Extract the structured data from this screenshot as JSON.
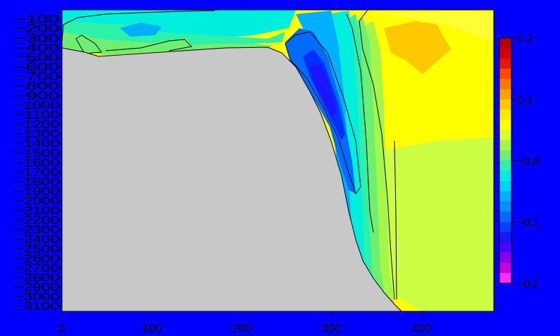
{
  "chart_data": {
    "type": "heatmap",
    "title": "",
    "xlabel": "",
    "ylabel": "",
    "xlim": [
      0,
      480
    ],
    "ylim": [
      3150,
      0
    ],
    "x_ticks": [
      0,
      100,
      200,
      300,
      400
    ],
    "x_tick_labels": [
      "0",
      "100",
      "200",
      "300",
      "400"
    ],
    "y_ticks": [
      100,
      200,
      300,
      400,
      500,
      600,
      700,
      800,
      900,
      1000,
      1100,
      1200,
      1300,
      1400,
      1500,
      1600,
      1700,
      1800,
      1900,
      2000,
      2100,
      2200,
      2300,
      2400,
      2500,
      2600,
      2700,
      2800,
      2900,
      3000,
      3100
    ],
    "y_tick_labels": [
      "−100",
      "−200",
      "−300",
      "−400",
      "−500",
      "−600",
      "−700",
      "−800",
      "−900",
      "−1000",
      "−1100",
      "−1200",
      "−1300",
      "−1400",
      "−1500",
      "−1600",
      "−1700",
      "−1800",
      "−1900",
      "−2000",
      "−2100",
      "−2200",
      "−2300",
      "−2400",
      "−2500",
      "−2600",
      "−2700",
      "−2800",
      "−2900",
      "−3000",
      "−3100"
    ],
    "colorbar": {
      "min": -0.2,
      "max": 0.2,
      "tick_values": [
        0.2,
        0.1,
        0.0,
        -0.1,
        -0.2
      ],
      "tick_labels": [
        "0.2",
        "0.1",
        "−0.0",
        "−0.1",
        "−0.2"
      ],
      "colors": [
        "#b50000",
        "#d40000",
        "#ea1500",
        "#ff4a00",
        "#ff7700",
        "#ffa200",
        "#ffc800",
        "#ffe800",
        "#ffff00",
        "#d8ff2a",
        "#a6f54a",
        "#6fef6f",
        "#2ef0a8",
        "#00eedd",
        "#00d2f5",
        "#00b0ff",
        "#0090ff",
        "#006bff",
        "#0042ff",
        "#1a14ff",
        "#4d00ff",
        "#8a00e8",
        "#c800d6",
        "#ff2cff"
      ]
    },
    "fields": {
      "background": "#ffff00",
      "land": "#c8c8c8",
      "light_yellow_green": "#ccff44",
      "pale_green": "#a6f54a",
      "green": "#6fef6f",
      "mint": "#2ef0a8",
      "cyan": "#00eedd",
      "sky": "#00b0ff",
      "blue": "#006bff",
      "deep_blue": "#0030ff",
      "navy": "#1a14ff",
      "orange_yellow": "#ffc800"
    }
  }
}
